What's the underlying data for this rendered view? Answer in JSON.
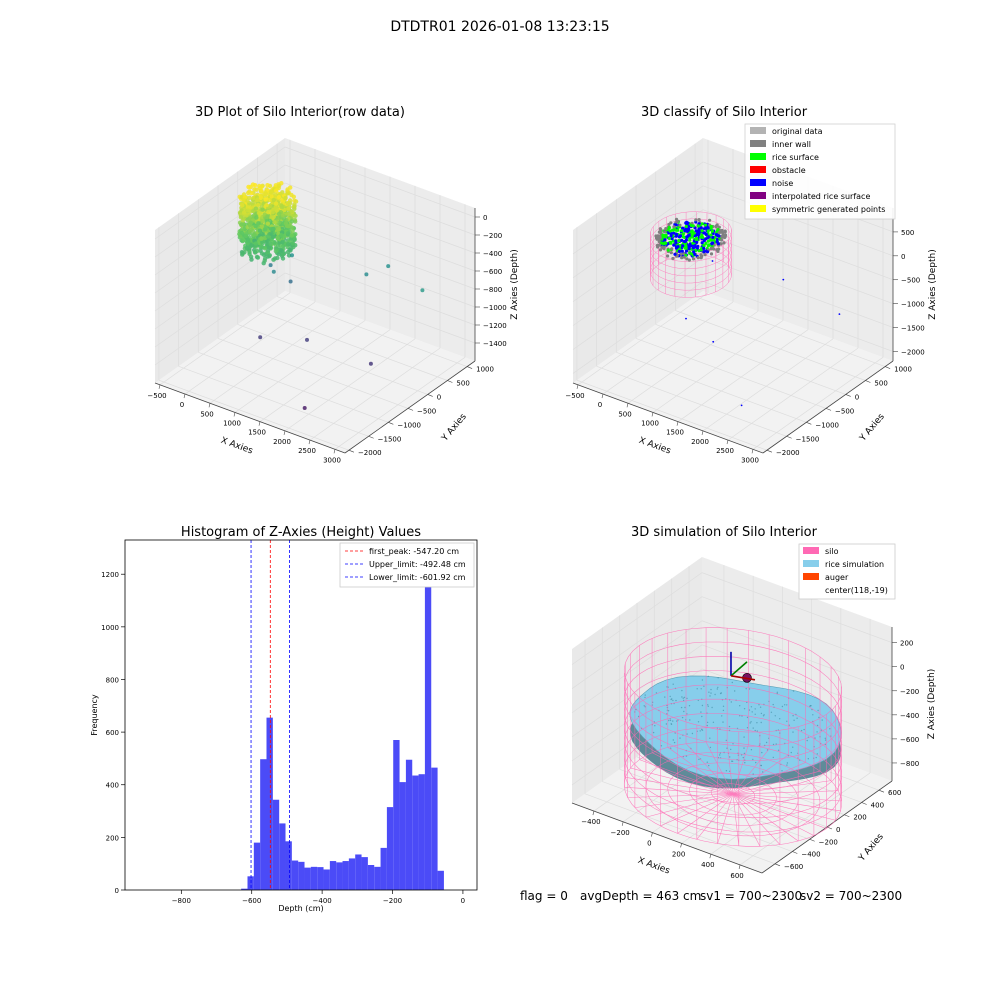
{
  "figure": {
    "title": "DTDTR01 2026-01-08 13:23:15",
    "footer": {
      "flag": "flag = 0",
      "avg_depth": "avgDepth = 463 cm",
      "sv1": "sv1 = 700~2300",
      "sv2": "sv2 = 700~2300"
    }
  },
  "colors": {
    "histogram_bar": "#4b4bf7",
    "first_peak_line": "#ff0000",
    "limit_lines": "#0000ff",
    "silo_wire": "#ff69b4",
    "rice_sim": "#87ceeb",
    "auger": "#ff4500",
    "pane_face": "#f2f2f2",
    "grid": "#dddddd"
  },
  "chart_data": [
    {
      "type": "scatter3d",
      "title": "3D Plot of Silo Interior(row data)",
      "xlabel": "X Axies",
      "ylabel": "Y Axies",
      "zlabel": "Z Axies (Depth)",
      "xlim": [
        -600,
        3200
      ],
      "ylim": [
        -2100,
        1200
      ],
      "zlim": [
        -1600,
        100
      ],
      "xticks": [
        -500,
        0,
        500,
        1000,
        1500,
        2000,
        2500,
        3000
      ],
      "yticks": [
        -2000,
        -1500,
        -1000,
        -500,
        0,
        500,
        1000
      ],
      "zticks": [
        0,
        -200,
        -400,
        -600,
        -800,
        -1000,
        -1200,
        -1400
      ],
      "xtick_labels": [
        "−500",
        "0",
        "500",
        "1000",
        "1500",
        "2000",
        "2500",
        "3000"
      ],
      "ytick_labels": [
        "−2000",
        "−1500",
        "−1000",
        "−500",
        "0",
        "500",
        "1000"
      ],
      "ztick_labels": [
        "0",
        "−200",
        "−400",
        "−600",
        "−800",
        "−1000",
        "−1200",
        "−1400"
      ],
      "colormap": "viridis",
      "cluster": {
        "x_range": [
          -450,
          450
        ],
        "y_range": [
          -450,
          450
        ],
        "z_range": [
          -650,
          -30
        ]
      },
      "outliers": [
        [
          250,
          300,
          -750
        ],
        [
          200,
          -100,
          -820
        ],
        [
          -100,
          200,
          -900
        ],
        [
          300,
          200,
          -1000
        ],
        [
          1500,
          600,
          -800
        ],
        [
          1700,
          900,
          -760
        ],
        [
          2700,
          500,
          -700
        ],
        [
          1100,
          -400,
          -1300
        ],
        [
          400,
          -700,
          -1320
        ],
        [
          2300,
          -300,
          -1350
        ],
        [
          2000,
          -1600,
          -1500
        ]
      ]
    },
    {
      "type": "scatter3d",
      "title": "3D classify of Silo Interior",
      "xlabel": "X Axies",
      "ylabel": "Y Axies",
      "zlabel": "Z Axies (Depth)",
      "xlim": [
        -600,
        3200
      ],
      "ylim": [
        -2100,
        1200
      ],
      "zlim": [
        -2200,
        1000
      ],
      "xticks": [
        -500,
        0,
        500,
        1000,
        1500,
        2000,
        2500,
        3000
      ],
      "yticks": [
        -2000,
        -1500,
        -1000,
        -500,
        0,
        500,
        1000
      ],
      "zticks": [
        -2000,
        -1500,
        -1000,
        -500,
        0,
        500
      ],
      "xtick_labels": [
        "−500",
        "0",
        "500",
        "1000",
        "1500",
        "2000",
        "2500",
        "3000"
      ],
      "ytick_labels": [
        "−2000",
        "−1500",
        "−1000",
        "−500",
        "0",
        "500",
        "1000"
      ],
      "ztick_labels": [
        "−2000",
        "−1500",
        "−1000",
        "−500",
        "0",
        "500"
      ],
      "ztick_extra_label": "500",
      "legend": {
        "placement": "top-right",
        "entries": [
          {
            "label": "original data",
            "color": "#b3b3b3"
          },
          {
            "label": "inner wall",
            "color": "#808080"
          },
          {
            "label": "rice surface",
            "color": "#00ff00"
          },
          {
            "label": "obstacle",
            "color": "#ff0000"
          },
          {
            "label": "noise",
            "color": "#0000ff"
          },
          {
            "label": "interpolated rice surface",
            "color": "#800080"
          },
          {
            "label": "symmetric generated points",
            "color": "#ffff00"
          }
        ]
      }
    },
    {
      "type": "bar",
      "title": "Histogram of Z-Axies (Height) Values",
      "xlabel": "Depth (cm)",
      "ylabel": "Frequency",
      "xlim": [
        -960,
        40
      ],
      "ylim": [
        0,
        1330
      ],
      "xticks": [
        -800,
        -600,
        -400,
        -200,
        0
      ],
      "xtick_labels": [
        "−800",
        "−600",
        "−400",
        "−200",
        "0"
      ],
      "yticks": [
        0,
        200,
        400,
        600,
        800,
        1000,
        1200
      ],
      "bin_width": 18,
      "bin_start": -630,
      "values": [
        5,
        52,
        180,
        497,
        655,
        343,
        253,
        185,
        112,
        107,
        85,
        88,
        87,
        78,
        110,
        105,
        110,
        120,
        135,
        125,
        95,
        88,
        160,
        315,
        570,
        410,
        495,
        435,
        440,
        1270,
        465,
        73
      ],
      "vlines": [
        {
          "label": "first_peak: -547.20 cm",
          "x": -547.2,
          "color": "#ff0000",
          "style": "dashed"
        },
        {
          "label": "Upper_limit: -492.48 cm",
          "x": -492.48,
          "color": "#0000ff",
          "style": "dashed"
        },
        {
          "label": "Lower_limit: -601.92 cm",
          "x": -601.92,
          "color": "#0000ff",
          "style": "dashed"
        }
      ],
      "legend": {
        "placement": "top-right"
      }
    },
    {
      "type": "surface3d",
      "title": "3D simulation of Silo Interior",
      "xlabel": "X Axies",
      "ylabel": "Y Axies",
      "zlabel": "Z Axies (Depth)",
      "xlim": [
        -550,
        750
      ],
      "ylim": [
        -750,
        750
      ],
      "zlim": [
        -950,
        330
      ],
      "xticks": [
        -400,
        -200,
        0,
        200,
        400,
        600
      ],
      "yticks": [
        -600,
        -400,
        -200,
        0,
        200,
        400,
        600
      ],
      "zticks": [
        200,
        0,
        -200,
        -400,
        -600,
        -800
      ],
      "xtick_labels": [
        "−400",
        "−200",
        "0",
        "200",
        "400",
        "600"
      ],
      "ytick_labels": [
        "−600",
        "−400",
        "−200",
        "0",
        "200",
        "400",
        "600"
      ],
      "ztick_labels": [
        "200",
        "0",
        "−200",
        "−400",
        "−600",
        "−800"
      ],
      "silo": {
        "center": [
          118,
          -19
        ],
        "radius": 640,
        "z_top": 0,
        "z_bottom": -950
      },
      "rice_surface_depth": -463,
      "legend": {
        "placement": "top-right",
        "entries": [
          {
            "label": "silo",
            "color": "#ff69b4"
          },
          {
            "label": "rice simulation",
            "color": "#87ceeb"
          },
          {
            "label": "auger",
            "color": "#ff4500"
          },
          {
            "label": "center(118,-19)",
            "color": ""
          }
        ]
      }
    }
  ]
}
